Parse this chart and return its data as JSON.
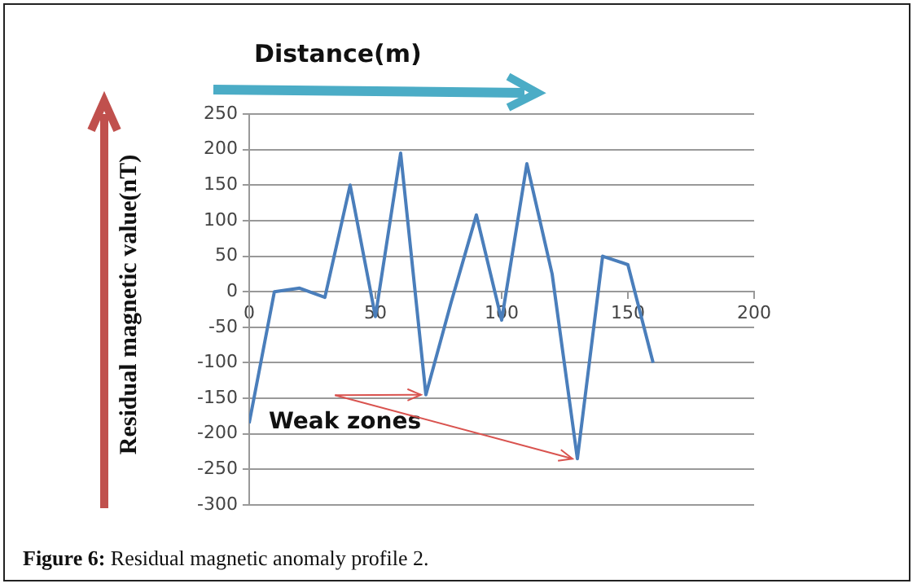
{
  "chart_data": {
    "type": "line",
    "xlabel": "Distance(m)",
    "ylabel": "Residual magnetic value(nT)",
    "x": [
      0,
      10,
      20,
      30,
      40,
      50,
      60,
      70,
      80,
      90,
      100,
      110,
      120,
      130,
      140,
      150,
      160
    ],
    "series": [
      {
        "color": "#4a7ebb",
        "values": [
          -185,
          0,
          5,
          -8,
          150,
          -35,
          195,
          -145,
          -15,
          108,
          -40,
          180,
          25,
          -235,
          50,
          38,
          -100
        ]
      }
    ],
    "xlim": [
      0,
      200
    ],
    "xticks": [
      0,
      50,
      100,
      150,
      200
    ],
    "ylim": [
      -300,
      250
    ],
    "yticks": [
      -300,
      -250,
      -200,
      -150,
      -100,
      -50,
      0,
      50,
      100,
      150,
      200,
      250
    ],
    "grid": "y",
    "marker": "none",
    "line_style": "solid",
    "legend": false,
    "annotations": [
      "Weak zones",
      "Figure 6: Residual magnetic anomaly profile 2."
    ]
  }
}
